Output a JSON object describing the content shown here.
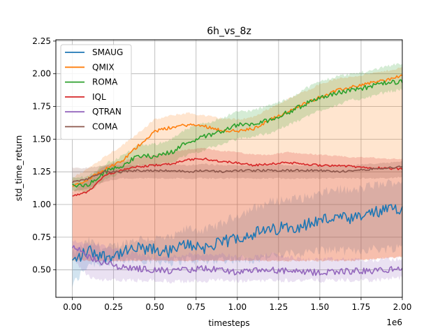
{
  "chart_data": {
    "type": "line",
    "title": "6h_vs_8z",
    "xlabel": "timesteps",
    "ylabel": "std_time_return",
    "x_offset_label": "1e6",
    "xlim": [
      -0.1,
      2.0
    ],
    "ylim": [
      0.29,
      2.26
    ],
    "x_ticks": [
      0.0,
      0.25,
      0.5,
      0.75,
      1.0,
      1.25,
      1.5,
      1.75,
      2.0
    ],
    "x_tick_labels": [
      "0.00",
      "0.25",
      "0.50",
      "0.75",
      "1.00",
      "1.25",
      "1.50",
      "1.75",
      "2.00"
    ],
    "y_ticks": [
      0.5,
      0.75,
      1.0,
      1.25,
      1.5,
      1.75,
      2.0,
      2.25
    ],
    "y_tick_labels": [
      "0.50",
      "0.75",
      "1.00",
      "1.25",
      "1.50",
      "1.75",
      "2.00",
      "2.25"
    ],
    "grid": true,
    "legend_position": "top-left",
    "x": [
      0.0,
      0.1,
      0.2,
      0.3,
      0.4,
      0.5,
      0.6,
      0.7,
      0.8,
      0.9,
      1.0,
      1.1,
      1.2,
      1.3,
      1.4,
      1.5,
      1.6,
      1.7,
      1.8,
      1.9,
      2.0
    ],
    "series": [
      {
        "name": "SMAUG",
        "color": "#1f77b4",
        "noise": 0.05,
        "values": [
          0.56,
          0.65,
          0.6,
          0.63,
          0.66,
          0.65,
          0.64,
          0.7,
          0.67,
          0.7,
          0.75,
          0.78,
          0.8,
          0.83,
          0.84,
          0.88,
          0.9,
          0.88,
          0.93,
          0.95,
          0.98
        ],
        "lower": [
          0.38,
          0.55,
          0.55,
          0.56,
          0.58,
          0.57,
          0.56,
          0.58,
          0.56,
          0.58,
          0.58,
          0.58,
          0.6,
          0.62,
          0.63,
          0.65,
          0.65,
          0.64,
          0.66,
          0.66,
          0.68
        ],
        "upper": [
          0.62,
          0.72,
          0.66,
          0.7,
          0.74,
          0.74,
          0.74,
          0.82,
          0.8,
          0.85,
          0.92,
          0.97,
          1.02,
          1.04,
          1.05,
          1.08,
          1.12,
          1.1,
          1.14,
          1.16,
          1.18
        ]
      },
      {
        "name": "QMIX",
        "color": "#ff7f0e",
        "noise": 0.012,
        "values": [
          1.14,
          1.2,
          1.27,
          1.33,
          1.45,
          1.56,
          1.59,
          1.61,
          1.6,
          1.57,
          1.56,
          1.58,
          1.65,
          1.7,
          1.77,
          1.82,
          1.87,
          1.9,
          1.93,
          1.95,
          1.99
        ],
        "lower": [
          0.57,
          0.57,
          0.57,
          0.57,
          0.57,
          0.57,
          0.57,
          0.57,
          0.57,
          0.57,
          0.57,
          0.57,
          0.57,
          0.57,
          0.57,
          0.57,
          0.57,
          0.57,
          0.58,
          0.59,
          0.6
        ],
        "upper": [
          1.2,
          1.28,
          1.37,
          1.45,
          1.55,
          1.65,
          1.68,
          1.7,
          1.68,
          1.66,
          1.65,
          1.67,
          1.74,
          1.8,
          1.86,
          1.92,
          1.96,
          1.98,
          2.0,
          2.02,
          2.05
        ]
      },
      {
        "name": "ROMA",
        "color": "#2ca02c",
        "noise": 0.018,
        "values": [
          1.14,
          1.15,
          1.25,
          1.3,
          1.37,
          1.37,
          1.4,
          1.48,
          1.52,
          1.56,
          1.61,
          1.61,
          1.65,
          1.7,
          1.76,
          1.82,
          1.85,
          1.88,
          1.9,
          1.93,
          1.94
        ],
        "lower": [
          1.1,
          1.1,
          1.2,
          1.24,
          1.3,
          1.3,
          1.32,
          1.38,
          1.42,
          1.46,
          1.5,
          1.52,
          1.55,
          1.6,
          1.66,
          1.72,
          1.76,
          1.8,
          1.82,
          1.86,
          1.88
        ],
        "upper": [
          1.2,
          1.22,
          1.31,
          1.37,
          1.45,
          1.46,
          1.5,
          1.58,
          1.62,
          1.66,
          1.71,
          1.72,
          1.76,
          1.8,
          1.88,
          1.94,
          1.98,
          2.0,
          2.02,
          2.06,
          2.08
        ]
      },
      {
        "name": "IQL",
        "color": "#d62728",
        "noise": 0.008,
        "values": [
          1.06,
          1.1,
          1.23,
          1.26,
          1.29,
          1.3,
          1.31,
          1.34,
          1.35,
          1.33,
          1.32,
          1.3,
          1.31,
          1.32,
          1.31,
          1.3,
          1.3,
          1.29,
          1.28,
          1.28,
          1.27
        ],
        "lower": [
          0.58,
          0.57,
          0.57,
          0.57,
          0.57,
          0.57,
          0.57,
          0.57,
          0.57,
          0.57,
          0.57,
          0.57,
          0.57,
          0.57,
          0.57,
          0.57,
          0.57,
          0.57,
          0.58,
          0.59,
          0.6
        ],
        "upper": [
          1.1,
          1.2,
          1.3,
          1.33,
          1.36,
          1.38,
          1.4,
          1.42,
          1.43,
          1.41,
          1.4,
          1.38,
          1.38,
          1.4,
          1.39,
          1.38,
          1.37,
          1.36,
          1.36,
          1.35,
          1.35
        ]
      },
      {
        "name": "QTRAN",
        "color": "#9467bd",
        "noise": 0.025,
        "values": [
          0.68,
          0.6,
          0.55,
          0.52,
          0.51,
          0.5,
          0.49,
          0.5,
          0.51,
          0.5,
          0.48,
          0.49,
          0.5,
          0.49,
          0.48,
          0.48,
          0.49,
          0.49,
          0.49,
          0.5,
          0.51
        ],
        "lower": [
          0.58,
          0.45,
          0.42,
          0.42,
          0.42,
          0.42,
          0.41,
          0.41,
          0.42,
          0.42,
          0.41,
          0.42,
          0.42,
          0.42,
          0.42,
          0.42,
          0.42,
          0.42,
          0.42,
          0.43,
          0.44
        ],
        "upper": [
          0.72,
          0.7,
          0.68,
          0.64,
          0.62,
          0.6,
          0.6,
          0.62,
          0.62,
          0.62,
          0.6,
          0.6,
          0.62,
          0.6,
          0.58,
          0.58,
          0.58,
          0.58,
          0.57,
          0.58,
          0.58
        ]
      },
      {
        "name": "COMA",
        "color": "#8c564b",
        "noise": 0.008,
        "values": [
          1.17,
          1.2,
          1.25,
          1.25,
          1.26,
          1.26,
          1.26,
          1.25,
          1.26,
          1.25,
          1.26,
          1.26,
          1.26,
          1.26,
          1.26,
          1.26,
          1.25,
          1.26,
          1.27,
          1.28,
          1.29
        ],
        "lower": [
          1.1,
          1.12,
          1.18,
          1.2,
          1.2,
          1.2,
          1.2,
          1.2,
          1.2,
          1.2,
          1.2,
          1.2,
          1.2,
          1.2,
          1.2,
          1.2,
          1.2,
          1.2,
          1.2,
          1.2,
          1.21
        ],
        "upper": [
          1.28,
          1.28,
          1.3,
          1.3,
          1.3,
          1.31,
          1.31,
          1.3,
          1.31,
          1.3,
          1.3,
          1.3,
          1.3,
          1.3,
          1.3,
          1.3,
          1.3,
          1.3,
          1.31,
          1.32,
          1.33
        ]
      }
    ]
  }
}
